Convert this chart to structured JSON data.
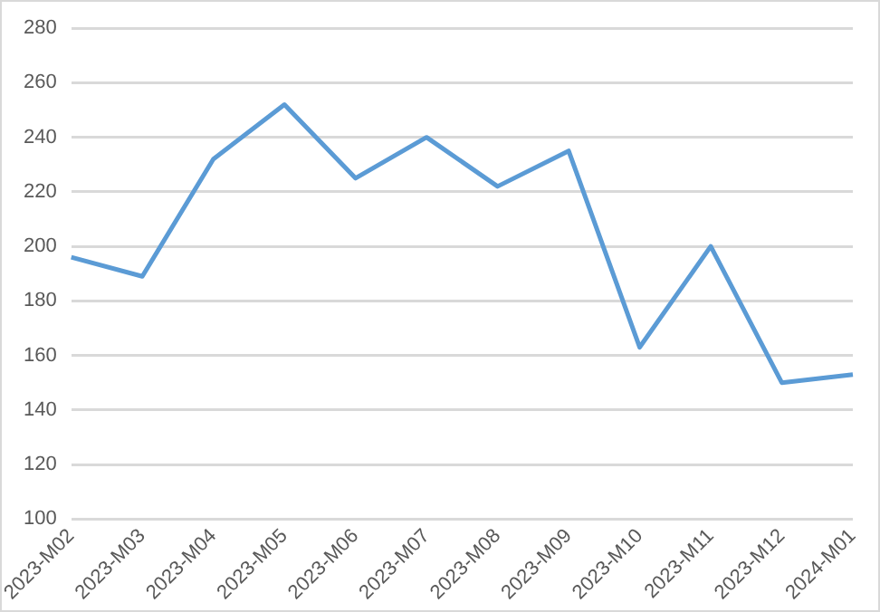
{
  "chart_data": {
    "type": "line",
    "categories": [
      "2023-M02",
      "2023-M03",
      "2023-M04",
      "2023-M05",
      "2023-M06",
      "2023-M07",
      "2023-M08",
      "2023-M09",
      "2023-M10",
      "2023-M11",
      "2023-M12",
      "2024-M01"
    ],
    "series": [
      {
        "color": "#5b9bd5",
        "values": [
          196,
          189,
          232,
          252,
          225,
          240,
          222,
          235,
          163,
          200,
          150,
          153
        ]
      }
    ],
    "ylim": [
      100,
      280
    ],
    "yticks": [
      100,
      120,
      140,
      160,
      180,
      200,
      220,
      240,
      260,
      280
    ],
    "grid": "y",
    "legend": false,
    "marker": "none",
    "line_style": "solid"
  }
}
